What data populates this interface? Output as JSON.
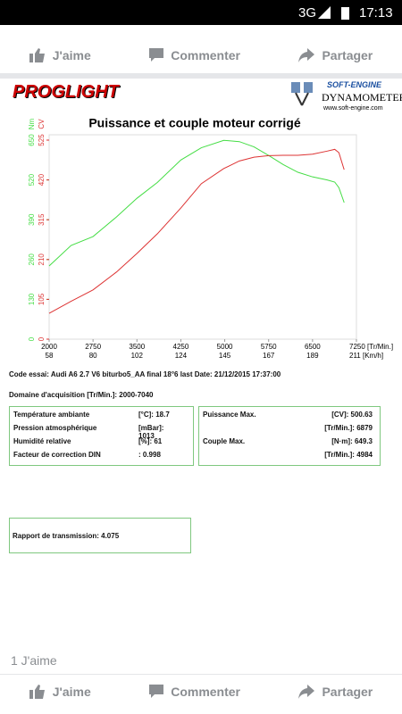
{
  "status_bar": {
    "network": "3G",
    "time": "17:13"
  },
  "actions": {
    "like": "J'aime",
    "comment": "Commenter",
    "share": "Partager"
  },
  "logos": {
    "left": "PROGLIGHT",
    "right_top": "SOFT-ENGINE",
    "right_main": "DYNAMOMETERS",
    "right_url": "www.soft-engine.com"
  },
  "chart_data": {
    "type": "line",
    "title": "Puissance et couple moteur corrigé",
    "y_label": "Nm",
    "y2_label": "CV",
    "x": [
      2000,
      2375,
      2750,
      3150,
      3500,
      3850,
      4250,
      4600,
      4984,
      5250,
      5500,
      5750,
      6000,
      6250,
      6500,
      6750,
      6879,
      6950,
      7040
    ],
    "xlim": [
      2000,
      7250
    ],
    "xticks": [
      2000,
      2750,
      3500,
      4250,
      5000,
      5750,
      6500,
      {
        "value": 7250,
        "label": "7250 [Tr/Min.]"
      }
    ],
    "speed_ticks": [
      58,
      80,
      102,
      124,
      145,
      167,
      189,
      {
        "value": 211,
        "label": "211 [Km/h]"
      }
    ],
    "ylim": [
      0,
      650
    ],
    "yticks": [
      0,
      130,
      260,
      390,
      520,
      650
    ],
    "y2lim": [
      0,
      525
    ],
    "y2ticks": [
      0,
      105,
      210,
      315,
      420,
      525
    ],
    "series": [
      {
        "name": "Couple",
        "color": "#44dd44",
        "values": [
          239,
          306,
          335,
          399,
          460,
          512,
          585,
          625,
          649.3,
          645,
          628,
          600,
          570,
          545,
          530,
          520,
          513,
          495,
          446
        ]
      },
      {
        "name": "Puissance",
        "color": "#dd3333",
        "axis": "y2",
        "values": [
          68,
          100,
          130,
          177,
          226,
          278,
          346,
          410,
          450,
          470,
          480,
          484,
          485,
          485,
          488,
          496,
          500.63,
          492,
          447
        ]
      }
    ]
  },
  "info": {
    "code": "Code essai: Audi A6 2.7 V6 biturbo5_AA final 18°6 last  Date: 21/12/2015 17:37:00",
    "domain": "Domaine d'acquisition [Tr/Min.]: 2000-7040",
    "left_rows": [
      [
        "Température ambiante",
        "[°C]: 18.7"
      ],
      [
        "Pression atmosphérique",
        "[mBar]: 1013"
      ],
      [
        "Humidité relative",
        "[%]: 61"
      ],
      [
        "Facteur de correction DIN",
        ": 0.998"
      ]
    ],
    "right_rows": [
      [
        "Puissance Max.",
        "[CV]: 500.63"
      ],
      [
        "",
        "[Tr/Min.]: 6879"
      ],
      [
        "Couple Max.",
        "[N·m]: 649.3"
      ],
      [
        "",
        "[Tr/Min.]: 4984"
      ]
    ],
    "transmission": "Rapport de transmission: 4.075"
  },
  "likes_count": "1 J'aime"
}
